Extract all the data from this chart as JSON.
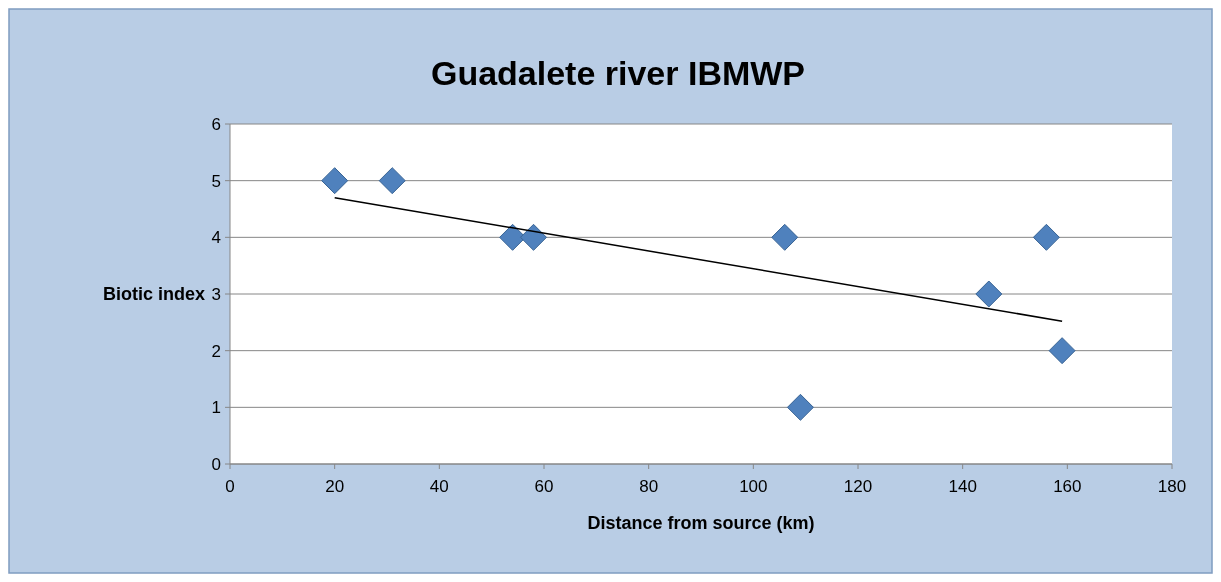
{
  "chart_data": {
    "type": "scatter",
    "title": "Guadalete river IBMWP",
    "xlabel": "Distance from source (km)",
    "ylabel": "Biotic index",
    "xlim": [
      0,
      180
    ],
    "xticks": [
      0,
      20,
      40,
      60,
      80,
      100,
      120,
      140,
      160,
      180
    ],
    "ylim": [
      0,
      6
    ],
    "yticks": [
      0,
      1,
      2,
      3,
      4,
      5,
      6
    ],
    "grid": "y",
    "marker": "diamond",
    "series": [
      {
        "color": "#4f81bd",
        "x": [
          20,
          31,
          54,
          58,
          106,
          109,
          145,
          156,
          159
        ],
        "values": [
          5,
          5,
          4,
          4,
          4,
          1,
          3,
          4,
          2
        ]
      },
      {
        "type": "line",
        "color": "#000000",
        "marker": "none",
        "x": [
          20,
          159
        ],
        "values": [
          4.7,
          2.52
        ]
      }
    ]
  }
}
